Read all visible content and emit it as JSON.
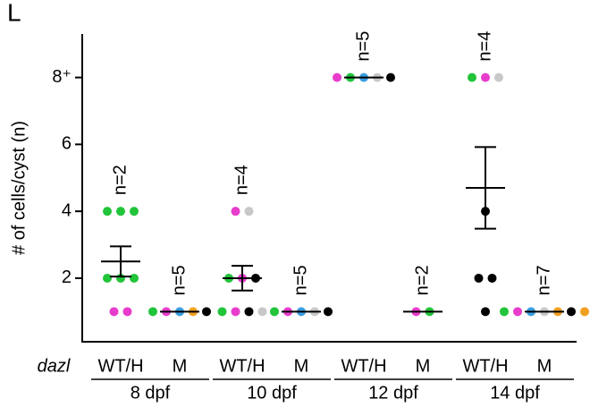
{
  "chart_data": {
    "type": "dot",
    "panel_label": "L",
    "y_label": "# of cells/cyst (n)",
    "x_prefix": "dazl",
    "ylim": [
      0.1,
      9.3
    ],
    "yticks": [
      2,
      4,
      6,
      {
        "value": 8,
        "label": "8⁺"
      }
    ],
    "groups": [
      "8 dpf",
      "10 dpf",
      "12 dpf",
      "14 dpf"
    ],
    "columns": [
      {
        "genotype": "WT/H",
        "n_label": "n=2",
        "mean": 2.5,
        "sem": 0.45,
        "points": [
          {
            "value": 4,
            "color": "#22c43a"
          },
          {
            "value": 4,
            "color": "#22c43a"
          },
          {
            "value": 4,
            "color": "#22c43a"
          },
          {
            "value": 2,
            "color": "#22c43a"
          },
          {
            "value": 2,
            "color": "#22c43a"
          },
          {
            "value": 2,
            "color": "#22c43a"
          },
          {
            "value": 1,
            "color": "#e83ccc"
          },
          {
            "value": 1,
            "color": "#e83ccc"
          }
        ]
      },
      {
        "genotype": "M",
        "n_label": "n=5",
        "mean": 1,
        "points": [
          {
            "value": 1,
            "color": "#22c43a"
          },
          {
            "value": 1,
            "color": "#e83ccc"
          },
          {
            "value": 1,
            "color": "#3a9ee0"
          },
          {
            "value": 1,
            "color": "#f0a020"
          },
          {
            "value": 1,
            "color": "#000000"
          }
        ]
      },
      {
        "genotype": "WT/H",
        "n_label": "n=4",
        "mean": 2,
        "sem": 0.37,
        "points": [
          {
            "value": 4,
            "color": "#e83ccc"
          },
          {
            "value": 4,
            "color": "#c8c8c8"
          },
          {
            "value": 2,
            "color": "#22c43a"
          },
          {
            "value": 2,
            "color": "#e83ccc"
          },
          {
            "value": 2,
            "color": "#000000"
          },
          {
            "value": 1,
            "color": "#22c43a"
          },
          {
            "value": 1,
            "color": "#e83ccc"
          },
          {
            "value": 1,
            "color": "#000000"
          },
          {
            "value": 1,
            "color": "#c8c8c8"
          }
        ]
      },
      {
        "genotype": "M",
        "n_label": "n=5",
        "mean": 1,
        "points": [
          {
            "value": 1,
            "color": "#22c43a"
          },
          {
            "value": 1,
            "color": "#e83ccc"
          },
          {
            "value": 1,
            "color": "#3a9ee0"
          },
          {
            "value": 1,
            "color": "#c8c8c8"
          },
          {
            "value": 1,
            "color": "#000000"
          }
        ]
      },
      {
        "genotype": "WT/H",
        "n_label": "n=5",
        "mean": 8,
        "points": [
          {
            "value": 8,
            "color": "#e83ccc"
          },
          {
            "value": 8,
            "color": "#22c43a"
          },
          {
            "value": 8,
            "color": "#3a9ee0"
          },
          {
            "value": 8,
            "color": "#c8c8c8"
          },
          {
            "value": 8,
            "color": "#000000"
          }
        ]
      },
      {
        "genotype": "M",
        "n_label": "n=2",
        "mean": 1,
        "points": [
          {
            "value": 1,
            "color": "#e83ccc"
          },
          {
            "value": 1,
            "color": "#22c43a"
          }
        ]
      },
      {
        "genotype": "WT/H",
        "n_label": "n=4",
        "mean": 4.7,
        "sem": 1.22,
        "points": [
          {
            "value": 8,
            "color": "#22c43a"
          },
          {
            "value": 8,
            "color": "#e83ccc"
          },
          {
            "value": 8,
            "color": "#c8c8c8"
          },
          {
            "value": 4,
            "color": "#000000"
          },
          {
            "value": 2,
            "color": "#000000"
          },
          {
            "value": 2,
            "color": "#000000"
          },
          {
            "value": 1,
            "color": "#000000"
          }
        ]
      },
      {
        "genotype": "M",
        "n_label": "n=7",
        "mean": 1,
        "points": [
          {
            "value": 1,
            "color": "#22c43a"
          },
          {
            "value": 1,
            "color": "#e83ccc"
          },
          {
            "value": 1,
            "color": "#3a9ee0"
          },
          {
            "value": 1,
            "color": "#c8c8c8"
          },
          {
            "value": 1,
            "color": "#f0a020"
          },
          {
            "value": 1,
            "color": "#000000"
          },
          {
            "value": 1,
            "color": "#f0a020"
          }
        ]
      }
    ]
  }
}
